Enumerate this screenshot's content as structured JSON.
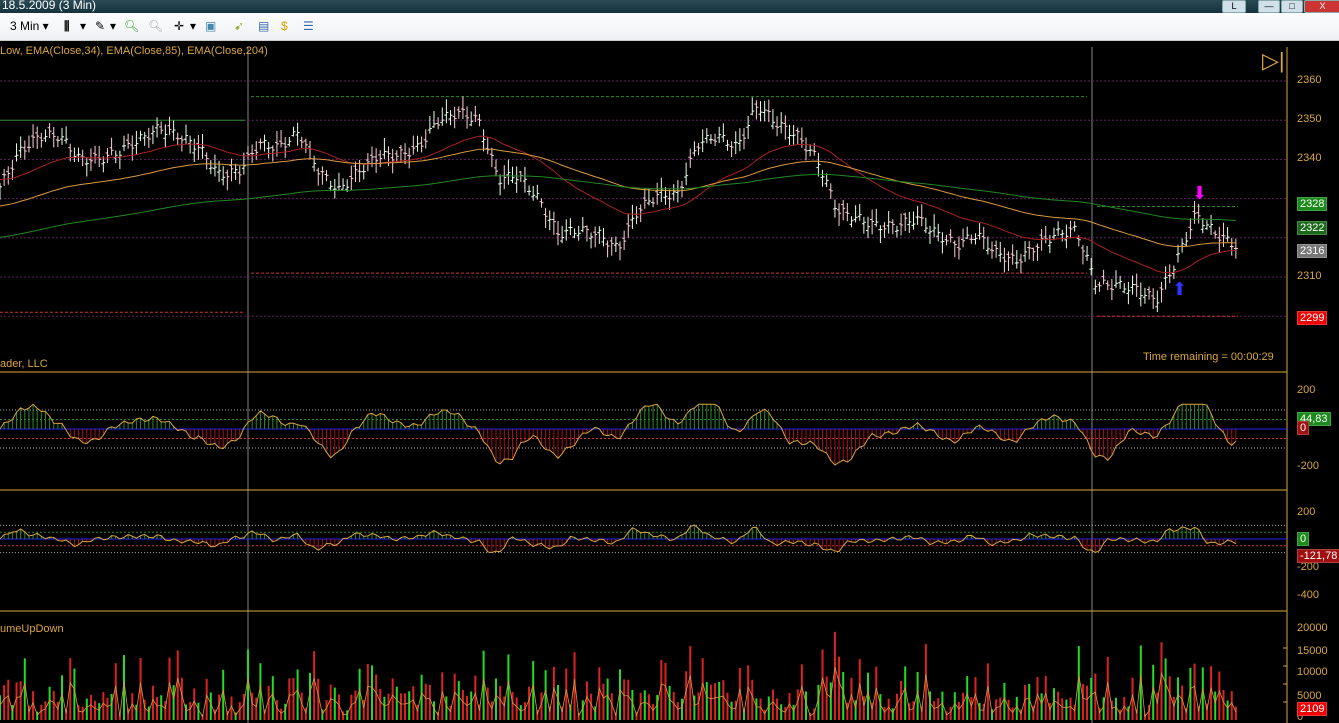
{
  "window": {
    "title": "18.5.2009 (3 Min)",
    "btn_l": "L",
    "btn_min": "—",
    "btn_max": "□",
    "btn_close": "X"
  },
  "toolbar": {
    "interval": "3 Min ▾",
    "bar_style": "▾",
    "draw": "▾",
    "crosshair": "▾"
  },
  "price_panel": {
    "indicators_label": "Low, EMA(Close,34), EMA(Close,85), EMA(Close,204)",
    "time_remaining": "Time remaining = 00:00:29",
    "axis_ticks": [
      "2360",
      "2350",
      "2340",
      "2310"
    ],
    "markers": {
      "high": "2328",
      "ema": "2322",
      "last": "2316",
      "low": "2299"
    }
  },
  "osc1_panel": {
    "label": "ader, LLC",
    "axis_ticks": [
      "200",
      "-200"
    ],
    "markers": {
      "value": "44,83",
      "zero": "0"
    }
  },
  "osc2_panel": {
    "label": "",
    "axis_ticks": [
      "200",
      "-200",
      "-400"
    ],
    "markers": {
      "zero": "0",
      "value": "-121,78"
    }
  },
  "volume_panel": {
    "label": "umeUpDown",
    "axis_ticks": [
      "20000",
      "15000",
      "10000",
      "5000",
      "0"
    ],
    "markers": {
      "value": "2109"
    }
  },
  "colors": {
    "axis": "#d9a640",
    "up": "#22dd22",
    "down": "#dd2222",
    "ema34": "#aa2222",
    "ema85": "#d99a40",
    "ema204": "#228822"
  },
  "chart_data": {
    "type": "ohlc",
    "ylim": [
      2295,
      2365
    ],
    "close_samples": [
      2333,
      2342,
      2346,
      2346,
      2340,
      2340,
      2342,
      2345,
      2348,
      2346,
      2343,
      2336,
      2337,
      2344,
      2343,
      2347,
      2337,
      2332,
      2337,
      2341,
      2341,
      2343,
      2350,
      2352,
      2350,
      2335,
      2336,
      2330,
      2321,
      2322,
      2321,
      2317,
      2327,
      2331,
      2331,
      2344,
      2346,
      2343,
      2354,
      2349,
      2346,
      2340,
      2327,
      2325,
      2323,
      2323,
      2325,
      2321,
      2318,
      2321,
      2316,
      2314,
      2318,
      2321,
      2322,
      2308,
      2308,
      2307,
      2304,
      2314,
      2326,
      2321,
      2318
    ]
  }
}
